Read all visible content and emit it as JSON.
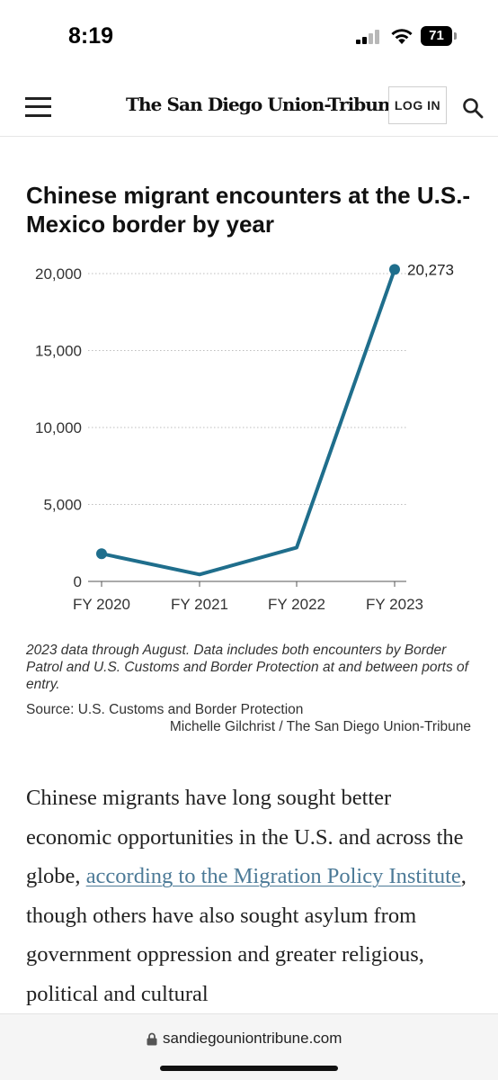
{
  "status_bar": {
    "time": "8:19",
    "battery": "71",
    "icons": [
      "signal-icon",
      "wifi-icon",
      "battery-icon"
    ]
  },
  "header": {
    "menu_icon": "hamburger-menu-icon",
    "logo": "The San Diego Union-Tribune",
    "login_label": "LOG IN",
    "search_icon": "search-icon"
  },
  "chart": {
    "note": "2023 data through August. Data includes both encounters by Border Patrol and U.S. Customs and Border Protection at and between ports of entry.",
    "source": "Source: U.S. Customs and Border Protection",
    "credit": "Michelle Gilchrist / The San Diego Union-Tribune"
  },
  "chart_data": {
    "type": "line",
    "title": "Chinese migrant encounters at the U.S.-Mexico border by year",
    "categories": [
      "FY 2020",
      "FY 2021",
      "FY 2022",
      "FY 2023"
    ],
    "series": [
      {
        "values": [
          1800,
          450,
          2200,
          20273
        ],
        "color": "#1f6e8c"
      }
    ],
    "y_ticks": [
      "0",
      "5,000",
      "10,000",
      "15,000",
      "20,000"
    ],
    "ylim": [
      0,
      20000
    ],
    "markers_on": [
      "FY 2020",
      "FY 2023"
    ],
    "value_labels": {
      "FY 2023": "20,273"
    },
    "grid": "horizontal dotted"
  },
  "article": {
    "text_before_link": "Chinese migrants have long sought better economic opportunities in the U.S. and across the globe, ",
    "link_text": "according to the Migration Policy Institute",
    "text_after_link": ", though others have also sought asylum from government oppression and greater religious, political and cultural"
  },
  "browser": {
    "url": "sandiegouniontribune.com"
  },
  "colors": {
    "line": "#1f6e8c",
    "link": "#4c7a97"
  }
}
